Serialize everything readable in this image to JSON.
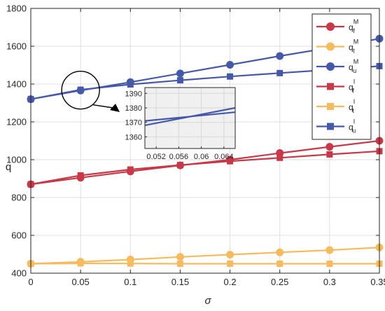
{
  "chart_data": {
    "type": "line",
    "title": "",
    "xlabel": "σ",
    "ylabel": "q",
    "x": [
      0,
      0.05,
      0.1,
      0.15,
      0.2,
      0.25,
      0.3,
      0.35
    ],
    "x_tick_labels": [
      "0",
      "0.05",
      "0.1",
      "0.15",
      "0.2",
      "0.25",
      "0.3",
      "0.35"
    ],
    "y_tick_labels": [
      "400",
      "600",
      "800",
      "1000",
      "1200",
      "1400",
      "1600",
      "1800"
    ],
    "xlim": [
      0,
      0.35
    ],
    "ylim": [
      400,
      1800
    ],
    "grid": true,
    "legend_position": "top-right",
    "series": [
      {
        "name": "q_f^M",
        "base": "q",
        "sub": "f",
        "sup": "M",
        "color": "#c73849",
        "marker": "circle",
        "values": [
          870,
          905,
          938,
          970,
          1000,
          1035,
          1068,
          1100
        ]
      },
      {
        "name": "q_t^M",
        "base": "q",
        "sub": "t",
        "sup": "M",
        "color": "#f5bb5e",
        "marker": "circle",
        "values": [
          450,
          460,
          472,
          486,
          498,
          510,
          522,
          536
        ]
      },
      {
        "name": "q_u^M",
        "base": "q",
        "sub": "u",
        "sup": "M",
        "color": "#4659a8",
        "marker": "circle",
        "values": [
          1320,
          1366,
          1410,
          1456,
          1502,
          1548,
          1592,
          1640
        ]
      },
      {
        "name": "q_f^I",
        "base": "q",
        "sub": "f",
        "sup": "I",
        "color": "#c73849",
        "marker": "square",
        "values": [
          870,
          917,
          948,
          972,
          992,
          1010,
          1028,
          1045
        ]
      },
      {
        "name": "q_t^I",
        "base": "q",
        "sub": "t",
        "sup": "I",
        "color": "#f5bb5e",
        "marker": "square",
        "values": [
          450,
          452,
          451,
          450,
          450,
          450,
          450,
          450
        ]
      },
      {
        "name": "q_u^I",
        "base": "q",
        "sub": "u",
        "sup": "I",
        "color": "#4659a8",
        "marker": "square",
        "values": [
          1320,
          1370,
          1398,
          1420,
          1440,
          1458,
          1476,
          1495
        ]
      }
    ],
    "inset": {
      "xlim": [
        0.05,
        0.066
      ],
      "ylim": [
        1352,
        1394
      ],
      "x_tick_labels": [
        "0.052",
        "0.056",
        "0.06",
        "0.064"
      ],
      "x_ticks": [
        0.052,
        0.056,
        0.06,
        0.064
      ],
      "y_tick_labels": [
        "1360",
        "1370",
        "1380",
        "1390"
      ],
      "y_ticks": [
        1360,
        1370,
        1380,
        1390
      ],
      "lines": [
        {
          "color": "#4659a8",
          "x": [
            0.05,
            0.066
          ],
          "values": [
            1368,
            1380
          ]
        },
        {
          "color": "#4659a8",
          "x": [
            0.05,
            0.066
          ],
          "values": [
            1371,
            1377
          ]
        }
      ],
      "magnified_center": {
        "x": 0.05,
        "y": 1368
      }
    }
  }
}
